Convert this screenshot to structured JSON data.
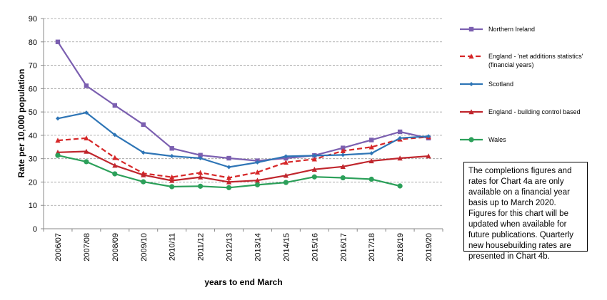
{
  "chart_data": {
    "type": "line",
    "xlabel": "years to end March",
    "ylabel": "Rate per 10,000 population",
    "ylim": [
      0,
      90
    ],
    "yticks": [
      0,
      10,
      20,
      30,
      40,
      50,
      60,
      70,
      80,
      90
    ],
    "grid": true,
    "legend_position": "right",
    "categories": [
      "2006/07",
      "2007/08",
      "2008/09",
      "2009/10",
      "2010/11",
      "2011/12",
      "2012/13",
      "2013/14",
      "2014/15",
      "2015/16",
      "2016/17",
      "2017/18",
      "2018/19",
      "2019/20"
    ],
    "series": [
      {
        "name": "Northern Ireland",
        "color": "#7b5fb0",
        "dash": false,
        "marker": "square",
        "legend_lines": [
          "Northern Ireland"
        ],
        "values": [
          80,
          61.2,
          52.8,
          44.6,
          34.4,
          31.5,
          30.2,
          29.1,
          30.2,
          31.4,
          34.6,
          38,
          41.5,
          38.8
        ]
      },
      {
        "name": "England -  'net additions statistics' (financial years)",
        "color": "#d62728",
        "dash": true,
        "marker": "triangle",
        "legend_lines": [
          "England -  'net additions statistics'",
          "(financial years)"
        ],
        "values": [
          37.8,
          38.8,
          30.4,
          23.7,
          22.1,
          24,
          21.8,
          24.2,
          28.4,
          29.8,
          33.3,
          35,
          38.3,
          39.3
        ]
      },
      {
        "name": "Scotland",
        "color": "#2e75b6",
        "dash": false,
        "marker": "diamond",
        "legend_lines": [
          "Scotland"
        ],
        "values": [
          47.2,
          49.7,
          40.2,
          32.6,
          31.1,
          30.2,
          26.4,
          28.4,
          31,
          31.3,
          31.6,
          32.3,
          38.8,
          39.6
        ]
      },
      {
        "name": "England - building control based",
        "color": "#c0262d",
        "dash": false,
        "marker": "triangle",
        "legend_lines": [
          "England - building control based"
        ],
        "values": [
          32.7,
          33.1,
          27.1,
          23,
          20.6,
          22.1,
          20,
          20.7,
          22.8,
          25.4,
          26.6,
          29,
          30.2,
          31.1
        ]
      },
      {
        "name": "Wales",
        "color": "#2ca05a",
        "dash": false,
        "marker": "circle",
        "legend_lines": [
          "Wales"
        ],
        "values": [
          31.4,
          28.7,
          23.5,
          20.1,
          18,
          18.2,
          17.6,
          18.8,
          19.8,
          22.2,
          21.8,
          21.2,
          18.3,
          null
        ]
      }
    ],
    "note": "The completions figures and rates for Chart 4a are only available on a financial year basis up to March 2020. Figures for this chart will be updated when available for future publications. Quarterly new housebuilding rates are presented in Chart 4b."
  }
}
